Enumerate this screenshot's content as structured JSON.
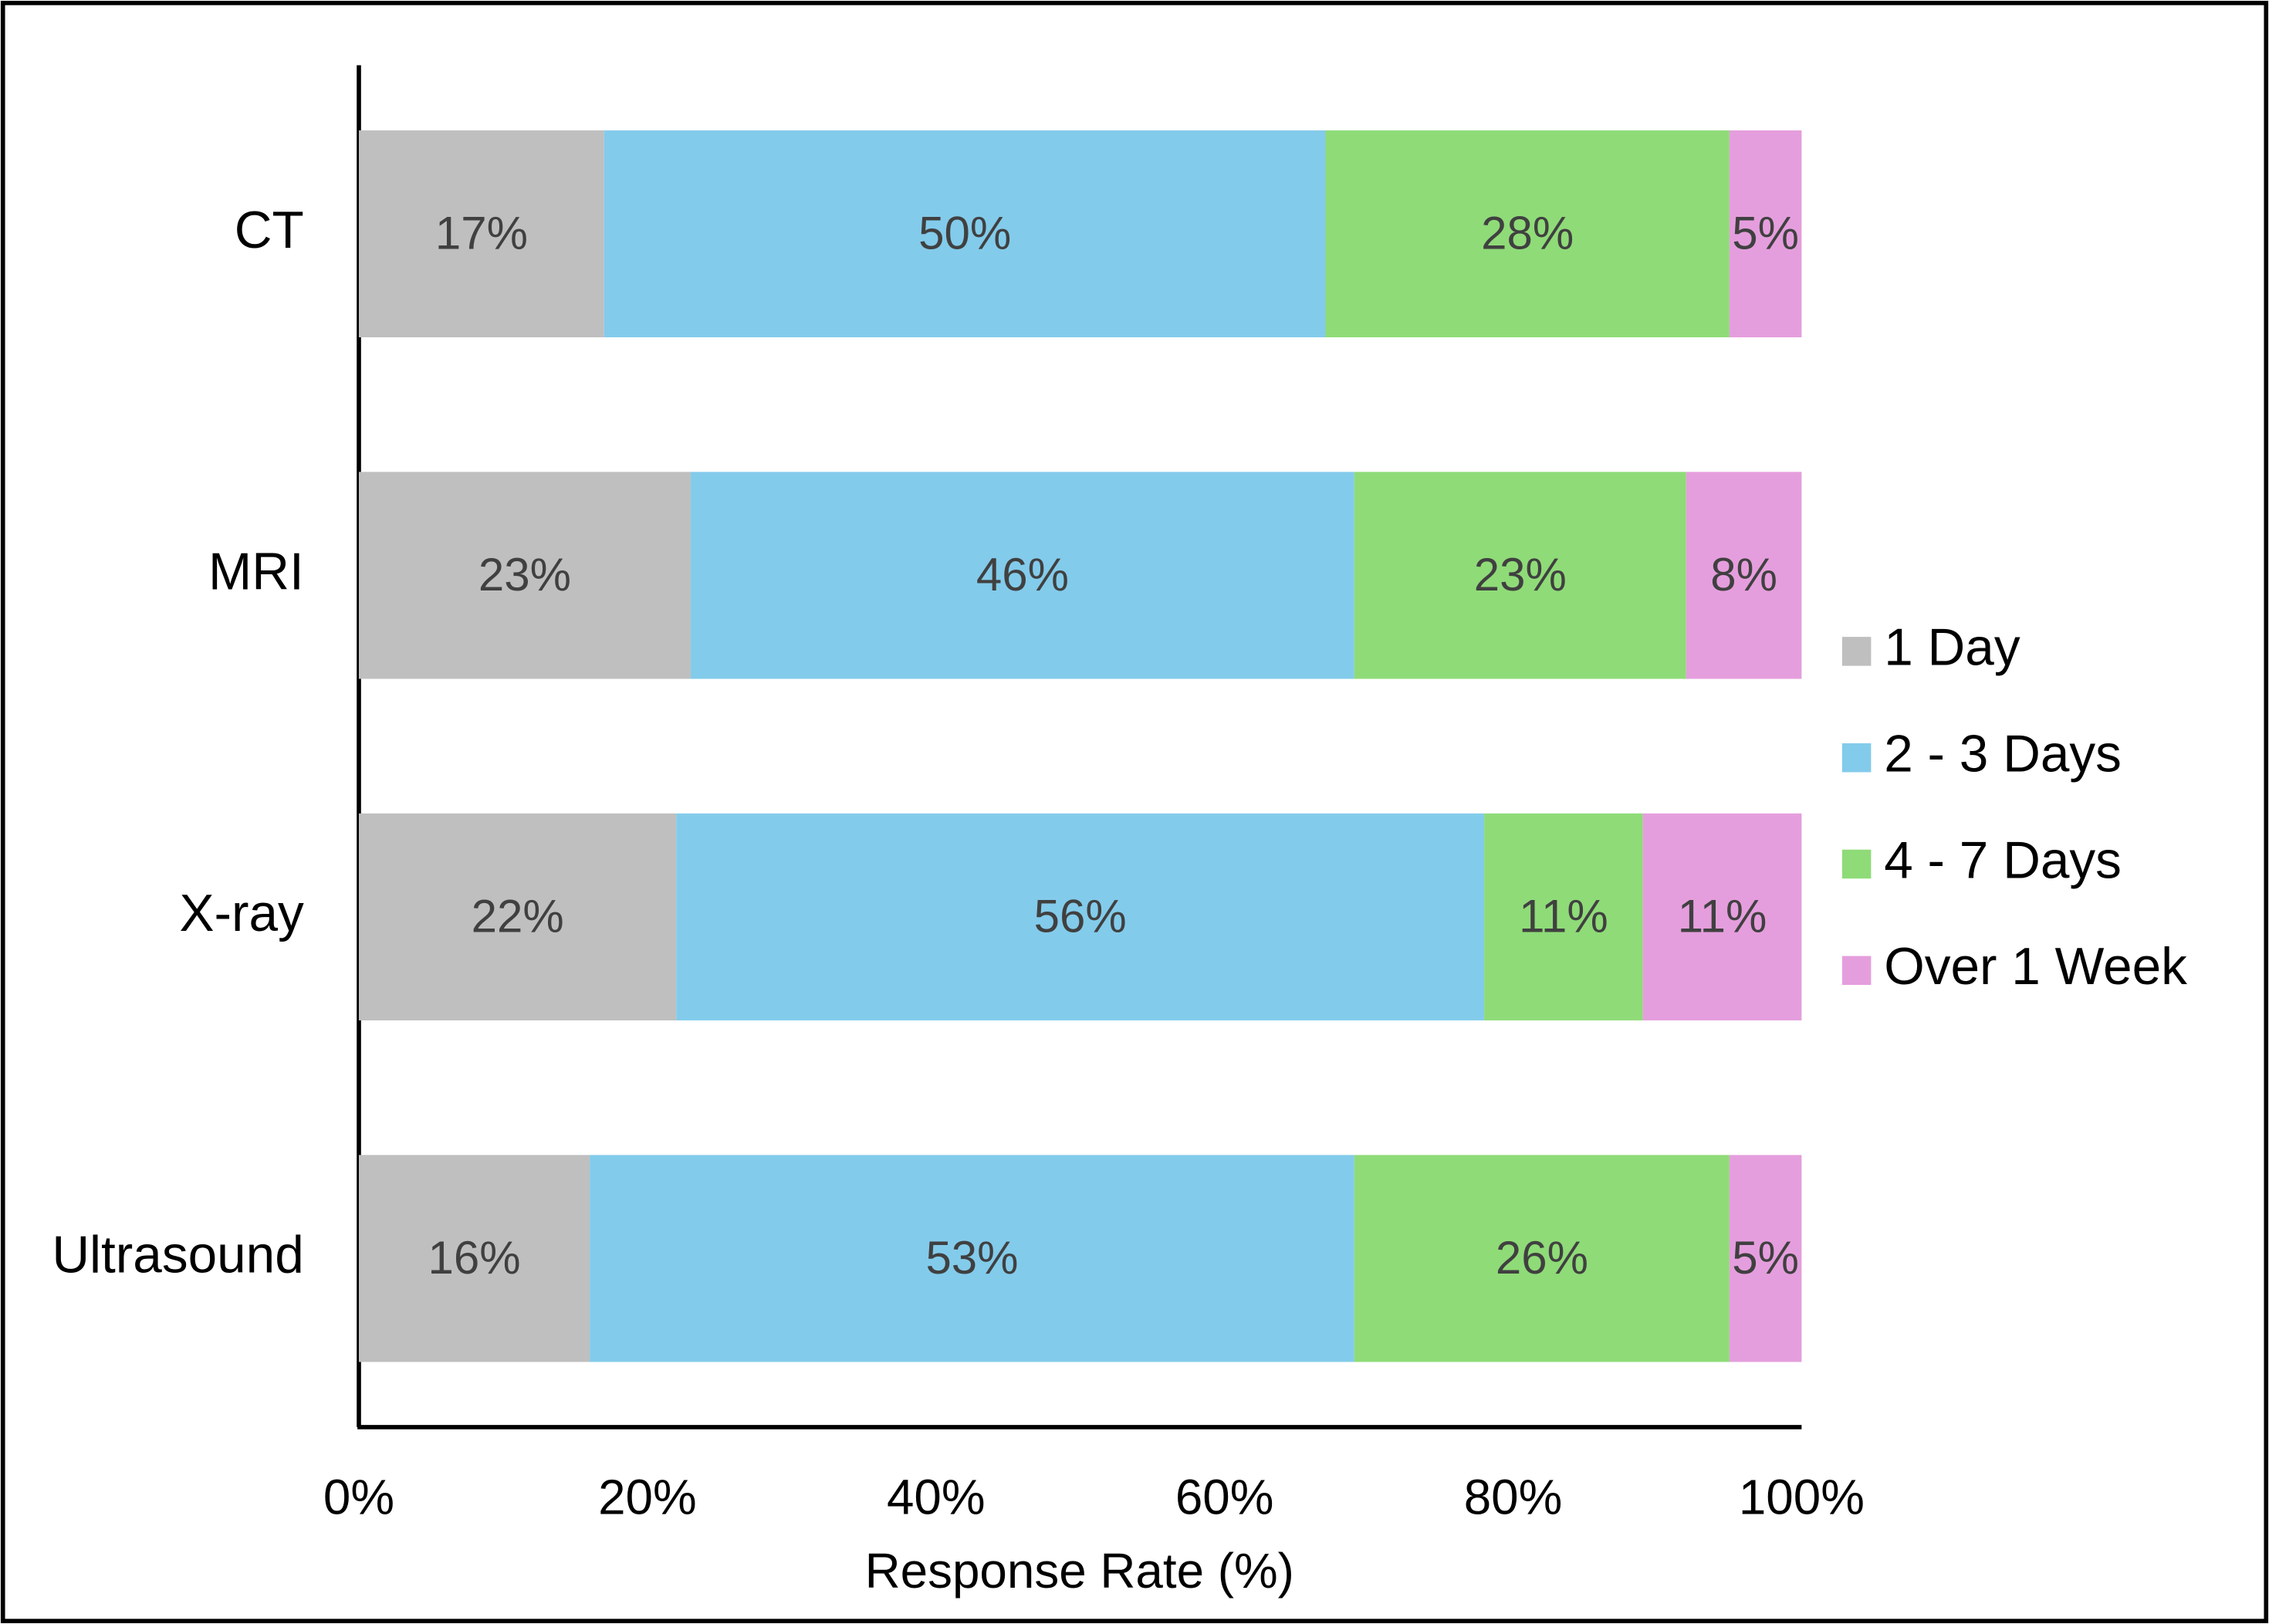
{
  "chart_data": {
    "type": "stacked-bar-horizontal",
    "categories": [
      "CT",
      "MRI",
      "X-ray",
      "Ultrasound"
    ],
    "series": [
      {
        "name": "1 Day",
        "color": "#bfbfbf",
        "values": [
          17,
          23,
          22,
          16
        ],
        "value_labels": [
          "17%",
          "23%",
          "22%",
          "16%"
        ]
      },
      {
        "name": "2 - 3 Days",
        "color": "#83cbeb",
        "values": [
          50,
          46,
          56,
          53
        ],
        "value_labels": [
          "50%",
          "46%",
          "56%",
          "53%"
        ]
      },
      {
        "name": "4 - 7 Days",
        "color": "#8fdb78",
        "values": [
          28,
          23,
          11,
          26
        ],
        "value_labels": [
          "28%",
          "23%",
          "11%",
          "26%"
        ]
      },
      {
        "name": "Over 1 Week",
        "color": "#e59edd",
        "values": [
          5,
          8,
          11,
          5
        ],
        "value_labels": [
          "5%",
          "8%",
          "11%",
          "5%"
        ]
      }
    ],
    "xlabel": "Response Rate (%)",
    "xlim": [
      0,
      100
    ],
    "xticks": [
      {
        "value": 0,
        "label": "0%"
      },
      {
        "value": 20,
        "label": "20%"
      },
      {
        "value": 40,
        "label": "40%"
      },
      {
        "value": 60,
        "label": "60%"
      },
      {
        "value": 80,
        "label": "80%"
      },
      {
        "value": 100,
        "label": "100%"
      }
    ],
    "legend": "right"
  }
}
